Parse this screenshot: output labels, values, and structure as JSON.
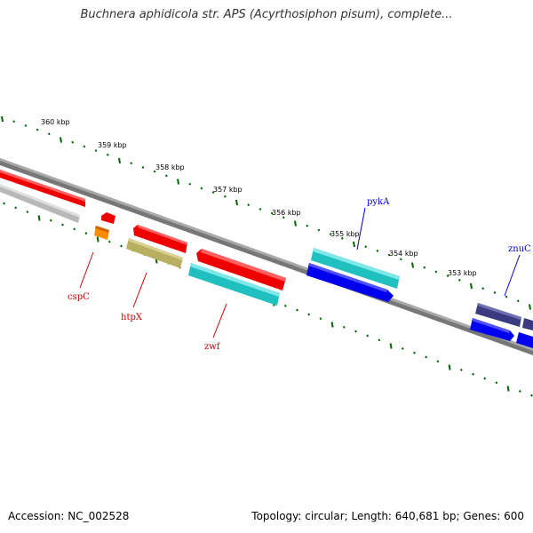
{
  "title": "Buchnera aphidicola str. APS (Acyrthosiphon pisum), complete...",
  "footer": {
    "accession": "Accession: NC_002528",
    "summary": "Topology: circular; Length: 640,681 bp; Genes: 600"
  },
  "scale_labels": [
    "360 kbp",
    "359 kbp",
    "358 kbp",
    "357 kbp",
    "356 kbp",
    "355 kbp",
    "354 kbp",
    "353 kbp"
  ],
  "gene_labels": [
    {
      "name": "cspC",
      "color": "#cc0000"
    },
    {
      "name": "htpX",
      "color": "#cc0000"
    },
    {
      "name": "zwf",
      "color": "#cc0000"
    },
    {
      "name": "pykA",
      "color": "#0000cc"
    },
    {
      "name": "znuC",
      "color": "#0000cc"
    }
  ],
  "colors": {
    "backbone": "#808080",
    "tick": "#006600",
    "red_feature": "#ee0000",
    "grey_feature": "#c0c0c0",
    "orange_feature": "#ff8c00",
    "olive_feature": "#b8b060",
    "cyan_feature": "#20c0c0",
    "blue_feature": "#0000ee",
    "navy_feature": "#3a3a80"
  }
}
